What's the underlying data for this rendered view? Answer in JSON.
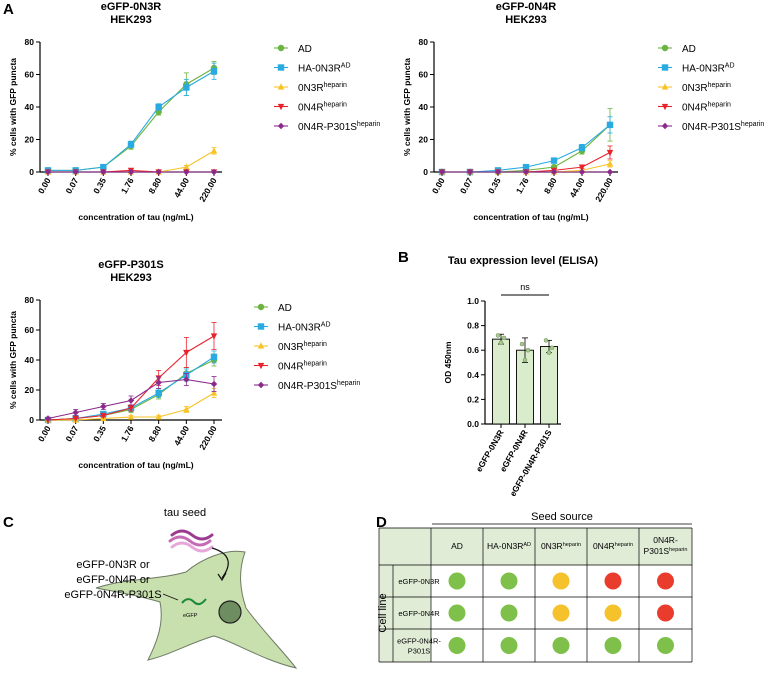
{
  "panels": {
    "a": "A",
    "b": "B",
    "c": "C",
    "d": "D"
  },
  "colors": {
    "AD": "#6cb33f",
    "HA-0N3R": "#29abe2",
    "0N3R-heparin": "#f7c325",
    "0N4R-heparin": "#e8232b",
    "0N4R-P301S-heparin": "#8b2a8b",
    "bar_fill": "#d9eccb",
    "good": "#7ec04a",
    "medium": "#f5c22c",
    "bad": "#ea3c2d"
  },
  "chart_data": [
    {
      "type": "line",
      "id": "c1",
      "title": [
        "eGFP-0N3R",
        "HEK293"
      ],
      "xlabel": "concentration of tau (ng/mL)",
      "ylabel": "% cells with GFP puncta",
      "categories": [
        "0.00",
        "0.07",
        "0.35",
        "1.76",
        "8.80",
        "44.00",
        "220.00"
      ],
      "ylim": [
        0,
        80
      ],
      "yticks": [
        0,
        20,
        40,
        60,
        80
      ],
      "series": [
        {
          "key": "AD",
          "name": "AD",
          "sup": "",
          "marker": "circle",
          "values": [
            1,
            1,
            3,
            16,
            37,
            54,
            64
          ],
          "err": [
            0,
            0,
            1,
            2,
            2,
            7,
            4
          ]
        },
        {
          "key": "HA-0N3R",
          "name": "HA-0N3R",
          "sup": "AD",
          "marker": "square",
          "values": [
            1,
            1,
            3,
            17,
            40,
            52,
            62
          ],
          "err": [
            0,
            0,
            1,
            2,
            2,
            5,
            5
          ]
        },
        {
          "key": "0N3R-heparin",
          "name": "0N3R",
          "sup": "heparin",
          "marker": "triangle",
          "values": [
            0,
            0,
            0,
            0,
            0,
            3,
            13
          ],
          "err": [
            0,
            0,
            0,
            0,
            0,
            1,
            2
          ]
        },
        {
          "key": "0N4R-heparin",
          "name": "0N4R",
          "sup": "heparin",
          "marker": "triangle-down",
          "values": [
            0,
            0,
            0,
            1,
            0,
            0,
            0
          ],
          "err": [
            0,
            0,
            0,
            0,
            0,
            0,
            0
          ]
        },
        {
          "key": "0N4R-P301S-heparin",
          "name": "0N4R-P301S",
          "sup": "heparin",
          "marker": "diamond",
          "values": [
            0,
            0,
            0,
            0,
            0,
            0,
            0
          ],
          "err": [
            0,
            0,
            0,
            0,
            0,
            0,
            0
          ]
        }
      ]
    },
    {
      "type": "line",
      "id": "c2",
      "title": [
        "eGFP-0N4R",
        "HEK293"
      ],
      "xlabel": "concentration of tau (ng/mL)",
      "ylabel": "% cells with GFP puncta",
      "categories": [
        "0.00",
        "0.07",
        "0.35",
        "1.76",
        "8.80",
        "44.00",
        "220.00"
      ],
      "ylim": [
        0,
        80
      ],
      "yticks": [
        0,
        20,
        40,
        60,
        80
      ],
      "series": [
        {
          "key": "AD",
          "name": "AD",
          "sup": "",
          "marker": "circle",
          "values": [
            0,
            0,
            0,
            1,
            3,
            13,
            29
          ],
          "err": [
            0,
            0,
            0,
            0,
            1,
            2,
            10
          ]
        },
        {
          "key": "HA-0N3R",
          "name": "HA-0N3R",
          "sup": "AD",
          "marker": "square",
          "values": [
            0,
            0,
            1,
            3,
            7,
            15,
            29
          ],
          "err": [
            0,
            0,
            0,
            1,
            1,
            2,
            5
          ]
        },
        {
          "key": "0N3R-heparin",
          "name": "0N3R",
          "sup": "heparin",
          "marker": "triangle",
          "values": [
            0,
            0,
            0,
            0,
            0,
            1,
            5
          ],
          "err": [
            0,
            0,
            0,
            0,
            0,
            0,
            2
          ]
        },
        {
          "key": "0N4R-heparin",
          "name": "0N4R",
          "sup": "heparin",
          "marker": "triangle-down",
          "values": [
            0,
            0,
            0,
            0,
            1,
            3,
            12
          ],
          "err": [
            0,
            0,
            0,
            0,
            0,
            1,
            4
          ]
        },
        {
          "key": "0N4R-P301S-heparin",
          "name": "0N4R-P301S",
          "sup": "heparin",
          "marker": "diamond",
          "values": [
            0,
            0,
            0,
            0,
            0,
            0,
            0
          ],
          "err": [
            0,
            0,
            0,
            0,
            0,
            0,
            0
          ]
        }
      ]
    },
    {
      "type": "line",
      "id": "c3",
      "title": [
        "eGFP-P301S",
        "HEK293"
      ],
      "xlabel": "concentration of tau (ng/mL)",
      "ylabel": "% cells with GFP puncta",
      "categories": [
        "0.00",
        "0.07",
        "0.35",
        "1.76",
        "8.80",
        "44.00",
        "220.00"
      ],
      "ylim": [
        0,
        80
      ],
      "yticks": [
        0,
        20,
        40,
        60,
        80
      ],
      "series": [
        {
          "key": "AD",
          "name": "AD",
          "sup": "",
          "marker": "circle",
          "values": [
            0,
            1,
            3,
            7,
            17,
            31,
            40
          ],
          "err": [
            0,
            0,
            1,
            2,
            3,
            4,
            4
          ]
        },
        {
          "key": "HA-0N3R",
          "name": "HA-0N3R",
          "sup": "AD",
          "marker": "square",
          "values": [
            0,
            1,
            4,
            8,
            18,
            30,
            42
          ],
          "err": [
            0,
            0,
            1,
            2,
            3,
            4,
            4
          ]
        },
        {
          "key": "0N3R-heparin",
          "name": "0N3R",
          "sup": "heparin",
          "marker": "triangle",
          "values": [
            0,
            0,
            1,
            2,
            2,
            7,
            18
          ],
          "err": [
            0,
            0,
            0,
            1,
            1,
            2,
            3
          ]
        },
        {
          "key": "0N4R-heparin",
          "name": "0N4R",
          "sup": "heparin",
          "marker": "triangle-down",
          "values": [
            0,
            1,
            3,
            8,
            28,
            45,
            56
          ],
          "err": [
            0,
            0,
            1,
            2,
            5,
            10,
            9
          ]
        },
        {
          "key": "0N4R-P301S-heparin",
          "name": "0N4R-P301S",
          "sup": "heparin",
          "marker": "diamond",
          "values": [
            1,
            5,
            9,
            13,
            25,
            27,
            24
          ],
          "err": [
            0,
            2,
            2,
            3,
            4,
            4,
            5
          ]
        }
      ]
    },
    {
      "type": "bar",
      "id": "c4",
      "title": "Tau expression level (ELISA)",
      "ylabel": "OD 450nm",
      "categories": [
        "eGFP-0N3R",
        "eGFP-0N4R",
        "eGFP-0N4R-P301S"
      ],
      "values": [
        0.69,
        0.6,
        0.63
      ],
      "err": [
        0.04,
        0.1,
        0.05
      ],
      "points": [
        [
          0.72,
          0.66,
          0.7
        ],
        [
          0.65,
          0.52,
          0.6
        ],
        [
          0.68,
          0.58,
          0.62
        ]
      ],
      "ylim": [
        0,
        1.0
      ],
      "yticks": [
        "0.0",
        "0.2",
        "0.4",
        "0.6",
        "0.8",
        "1.0"
      ],
      "significance": "ns"
    }
  ],
  "diagram": {
    "seed_label": "tau seed",
    "construct_lines": [
      "eGFP-0N3R or",
      "eGFP-0N4R or",
      "eGFP-0N4R-P301S"
    ],
    "egfp_label": "eGFP"
  },
  "table": {
    "header_title": "Seed source",
    "row_axis_label": "Cell line",
    "columns": [
      {
        "main": "AD",
        "sup": ""
      },
      {
        "main": "HA-0N3R",
        "sup": "AD"
      },
      {
        "main": "0N3R",
        "sup": "heparin"
      },
      {
        "main": "0N4R",
        "sup": "heparin"
      },
      {
        "main": "0N4R-P301S",
        "sup": "heparin"
      }
    ],
    "rows": [
      {
        "label": [
          "eGFP-0N3R"
        ],
        "cells": [
          "good",
          "good",
          "medium",
          "bad",
          "bad"
        ]
      },
      {
        "label": [
          "eGFP-0N4R"
        ],
        "cells": [
          "good",
          "good",
          "medium",
          "medium",
          "bad"
        ]
      },
      {
        "label": [
          "eGFP-0N4R-",
          "P301S"
        ],
        "cells": [
          "good",
          "good",
          "good",
          "good",
          "good"
        ]
      }
    ]
  }
}
